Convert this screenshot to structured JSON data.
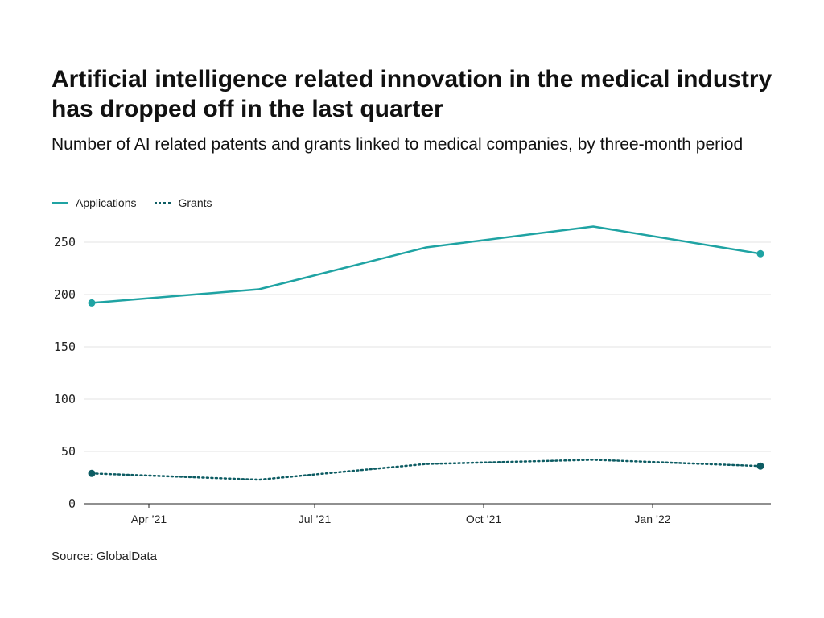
{
  "header": {
    "title": "Artificial intelligence related innovation in the medical industry has dropped off in the last quarter",
    "subtitle": "Number of AI related patents and grants linked to medical companies, by three-month period"
  },
  "footer": {
    "source": "Source: GlobalData"
  },
  "colors": {
    "applications": "#1fa3a3",
    "grants": "#0d5c63",
    "grid": "#e3e3e3",
    "axis": "#222222"
  },
  "chart_data": {
    "type": "line",
    "title": "Artificial intelligence related innovation in the medical industry has dropped off in the last quarter",
    "subtitle": "Number of AI related patents and grants linked to medical companies, by three-month period",
    "xlabel": "",
    "ylabel": "",
    "x": [
      "2021-03",
      "2021-06",
      "2021-09",
      "2021-12",
      "2022-03"
    ],
    "x_ticks": [
      "Apr ’21",
      "Jul ’21",
      "Oct ’21",
      "Jan ’22"
    ],
    "y_ticks": [
      "0",
      "50",
      "100",
      "150",
      "200",
      "250"
    ],
    "ylim": [
      0,
      265
    ],
    "grid": true,
    "legend_position": "top-left",
    "series": [
      {
        "name": "Applications",
        "style": "solid",
        "values": [
          192,
          205,
          245,
          265,
          239
        ]
      },
      {
        "name": "Grants",
        "style": "dotted",
        "values": [
          29,
          23,
          38,
          42,
          36
        ]
      }
    ]
  }
}
